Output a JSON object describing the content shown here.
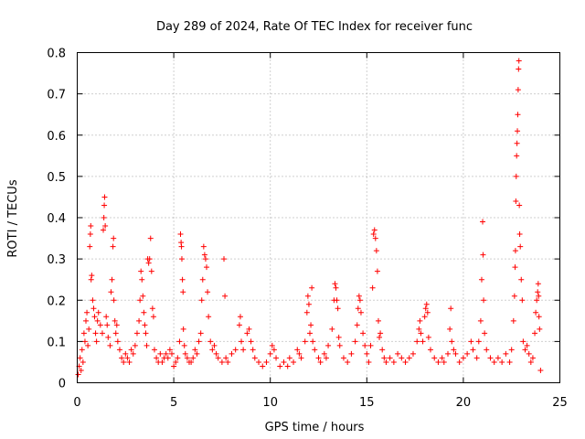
{
  "chart_data": {
    "type": "scatter",
    "title": "Day 289 of 2024, Rate Of TEC Index for receiver func",
    "xlabel": "GPS time / hours",
    "ylabel": "ROTI / TECUs",
    "xlim": [
      0,
      25
    ],
    "ylim": [
      0,
      0.8
    ],
    "x_ticks": [
      "0",
      "5",
      "10",
      "15",
      "20",
      "25"
    ],
    "y_ticks": [
      "0",
      "0.1",
      "0.2",
      "0.3",
      "0.4",
      "0.5",
      "0.6",
      "0.7",
      "0.8"
    ],
    "grid": true,
    "marker": "+",
    "color": "#ff0000",
    "series": [
      {
        "points": [
          [
            0.05,
            0.02
          ],
          [
            0.1,
            0.04
          ],
          [
            0.15,
            0.06
          ],
          [
            0.2,
            0.03
          ],
          [
            0.25,
            0.08
          ],
          [
            0.3,
            0.05
          ],
          [
            0.35,
            0.12
          ],
          [
            0.4,
            0.1
          ],
          [
            0.45,
            0.15
          ],
          [
            0.5,
            0.17
          ],
          [
            0.55,
            0.09
          ],
          [
            0.6,
            0.13
          ],
          [
            0.65,
            0.33
          ],
          [
            0.68,
            0.36
          ],
          [
            0.7,
            0.38
          ],
          [
            0.72,
            0.25
          ],
          [
            0.75,
            0.26
          ],
          [
            0.8,
            0.2
          ],
          [
            0.85,
            0.18
          ],
          [
            0.9,
            0.16
          ],
          [
            0.95,
            0.12
          ],
          [
            1.0,
            0.1
          ],
          [
            1.05,
            0.15
          ],
          [
            1.1,
            0.17
          ],
          [
            1.2,
            0.14
          ],
          [
            1.3,
            0.12
          ],
          [
            1.35,
            0.37
          ],
          [
            1.38,
            0.4
          ],
          [
            1.4,
            0.43
          ],
          [
            1.42,
            0.45
          ],
          [
            1.45,
            0.38
          ],
          [
            1.5,
            0.16
          ],
          [
            1.55,
            0.14
          ],
          [
            1.6,
            0.11
          ],
          [
            1.7,
            0.09
          ],
          [
            1.75,
            0.22
          ],
          [
            1.8,
            0.25
          ],
          [
            1.85,
            0.33
          ],
          [
            1.88,
            0.35
          ],
          [
            1.9,
            0.2
          ],
          [
            1.95,
            0.15
          ],
          [
            2.0,
            0.12
          ],
          [
            2.05,
            0.14
          ],
          [
            2.1,
            0.1
          ],
          [
            2.2,
            0.08
          ],
          [
            2.3,
            0.06
          ],
          [
            2.4,
            0.05
          ],
          [
            2.5,
            0.07
          ],
          [
            2.6,
            0.06
          ],
          [
            2.7,
            0.05
          ],
          [
            2.8,
            0.08
          ],
          [
            2.9,
            0.07
          ],
          [
            3.0,
            0.09
          ],
          [
            3.1,
            0.12
          ],
          [
            3.2,
            0.15
          ],
          [
            3.25,
            0.2
          ],
          [
            3.3,
            0.27
          ],
          [
            3.35,
            0.25
          ],
          [
            3.4,
            0.21
          ],
          [
            3.45,
            0.17
          ],
          [
            3.5,
            0.14
          ],
          [
            3.55,
            0.12
          ],
          [
            3.6,
            0.09
          ],
          [
            3.65,
            0.3
          ],
          [
            3.7,
            0.29
          ],
          [
            3.75,
            0.3
          ],
          [
            3.8,
            0.35
          ],
          [
            3.85,
            0.27
          ],
          [
            3.9,
            0.18
          ],
          [
            3.95,
            0.16
          ],
          [
            4.0,
            0.08
          ],
          [
            4.1,
            0.06
          ],
          [
            4.2,
            0.05
          ],
          [
            4.3,
            0.07
          ],
          [
            4.4,
            0.05
          ],
          [
            4.5,
            0.06
          ],
          [
            4.6,
            0.07
          ],
          [
            4.7,
            0.06
          ],
          [
            4.8,
            0.08
          ],
          [
            4.9,
            0.07
          ],
          [
            5.0,
            0.04
          ],
          [
            5.1,
            0.05
          ],
          [
            5.2,
            0.06
          ],
          [
            5.3,
            0.1
          ],
          [
            5.35,
            0.36
          ],
          [
            5.38,
            0.34
          ],
          [
            5.4,
            0.33
          ],
          [
            5.42,
            0.3
          ],
          [
            5.45,
            0.25
          ],
          [
            5.48,
            0.22
          ],
          [
            5.5,
            0.13
          ],
          [
            5.55,
            0.09
          ],
          [
            5.6,
            0.07
          ],
          [
            5.7,
            0.06
          ],
          [
            5.8,
            0.05
          ],
          [
            5.9,
            0.05
          ],
          [
            6.0,
            0.06
          ],
          [
            6.1,
            0.08
          ],
          [
            6.2,
            0.07
          ],
          [
            6.3,
            0.1
          ],
          [
            6.4,
            0.12
          ],
          [
            6.45,
            0.2
          ],
          [
            6.5,
            0.25
          ],
          [
            6.55,
            0.33
          ],
          [
            6.6,
            0.31
          ],
          [
            6.65,
            0.3
          ],
          [
            6.7,
            0.28
          ],
          [
            6.75,
            0.22
          ],
          [
            6.8,
            0.16
          ],
          [
            6.9,
            0.1
          ],
          [
            7.0,
            0.08
          ],
          [
            7.1,
            0.09
          ],
          [
            7.2,
            0.07
          ],
          [
            7.3,
            0.06
          ],
          [
            7.5,
            0.05
          ],
          [
            7.6,
            0.3
          ],
          [
            7.65,
            0.21
          ],
          [
            7.7,
            0.06
          ],
          [
            7.8,
            0.05
          ],
          [
            8.0,
            0.07
          ],
          [
            8.2,
            0.08
          ],
          [
            8.4,
            0.14
          ],
          [
            8.45,
            0.16
          ],
          [
            8.5,
            0.1
          ],
          [
            8.6,
            0.08
          ],
          [
            8.8,
            0.12
          ],
          [
            8.9,
            0.13
          ],
          [
            9.0,
            0.1
          ],
          [
            9.1,
            0.08
          ],
          [
            9.2,
            0.06
          ],
          [
            9.4,
            0.05
          ],
          [
            9.6,
            0.04
          ],
          [
            9.8,
            0.05
          ],
          [
            10.0,
            0.07
          ],
          [
            10.1,
            0.09
          ],
          [
            10.2,
            0.08
          ],
          [
            10.3,
            0.06
          ],
          [
            10.5,
            0.04
          ],
          [
            10.7,
            0.05
          ],
          [
            10.9,
            0.04
          ],
          [
            11.0,
            0.06
          ],
          [
            11.2,
            0.05
          ],
          [
            11.4,
            0.08
          ],
          [
            11.5,
            0.07
          ],
          [
            11.6,
            0.06
          ],
          [
            11.8,
            0.1
          ],
          [
            11.9,
            0.17
          ],
          [
            11.95,
            0.21
          ],
          [
            12.0,
            0.19
          ],
          [
            12.05,
            0.12
          ],
          [
            12.1,
            0.14
          ],
          [
            12.15,
            0.23
          ],
          [
            12.2,
            0.1
          ],
          [
            12.3,
            0.08
          ],
          [
            12.5,
            0.06
          ],
          [
            12.6,
            0.05
          ],
          [
            12.8,
            0.07
          ],
          [
            12.9,
            0.06
          ],
          [
            13.0,
            0.09
          ],
          [
            13.2,
            0.13
          ],
          [
            13.3,
            0.2
          ],
          [
            13.35,
            0.24
          ],
          [
            13.4,
            0.23
          ],
          [
            13.45,
            0.2
          ],
          [
            13.5,
            0.18
          ],
          [
            13.55,
            0.11
          ],
          [
            13.6,
            0.09
          ],
          [
            13.8,
            0.06
          ],
          [
            14.0,
            0.05
          ],
          [
            14.2,
            0.07
          ],
          [
            14.4,
            0.1
          ],
          [
            14.5,
            0.14
          ],
          [
            14.55,
            0.18
          ],
          [
            14.6,
            0.21
          ],
          [
            14.65,
            0.2
          ],
          [
            14.7,
            0.17
          ],
          [
            14.8,
            0.12
          ],
          [
            14.9,
            0.09
          ],
          [
            15.0,
            0.07
          ],
          [
            15.1,
            0.05
          ],
          [
            15.2,
            0.09
          ],
          [
            15.3,
            0.23
          ],
          [
            15.35,
            0.36
          ],
          [
            15.4,
            0.37
          ],
          [
            15.45,
            0.35
          ],
          [
            15.5,
            0.32
          ],
          [
            15.55,
            0.27
          ],
          [
            15.6,
            0.15
          ],
          [
            15.65,
            0.11
          ],
          [
            15.7,
            0.12
          ],
          [
            15.8,
            0.08
          ],
          [
            15.9,
            0.06
          ],
          [
            16.0,
            0.05
          ],
          [
            16.2,
            0.06
          ],
          [
            16.4,
            0.05
          ],
          [
            16.6,
            0.07
          ],
          [
            16.8,
            0.06
          ],
          [
            17.0,
            0.05
          ],
          [
            17.2,
            0.06
          ],
          [
            17.4,
            0.07
          ],
          [
            17.6,
            0.1
          ],
          [
            17.7,
            0.13
          ],
          [
            17.75,
            0.15
          ],
          [
            17.8,
            0.12
          ],
          [
            17.9,
            0.1
          ],
          [
            18.0,
            0.16
          ],
          [
            18.05,
            0.18
          ],
          [
            18.1,
            0.19
          ],
          [
            18.15,
            0.17
          ],
          [
            18.2,
            0.11
          ],
          [
            18.3,
            0.08
          ],
          [
            18.5,
            0.06
          ],
          [
            18.7,
            0.05
          ],
          [
            18.9,
            0.06
          ],
          [
            19.0,
            0.05
          ],
          [
            19.2,
            0.07
          ],
          [
            19.3,
            0.13
          ],
          [
            19.35,
            0.18
          ],
          [
            19.4,
            0.1
          ],
          [
            19.5,
            0.08
          ],
          [
            19.6,
            0.07
          ],
          [
            19.8,
            0.05
          ],
          [
            20.0,
            0.06
          ],
          [
            20.2,
            0.07
          ],
          [
            20.4,
            0.1
          ],
          [
            20.5,
            0.08
          ],
          [
            20.7,
            0.06
          ],
          [
            20.8,
            0.1
          ],
          [
            20.9,
            0.15
          ],
          [
            20.95,
            0.25
          ],
          [
            21.0,
            0.39
          ],
          [
            21.02,
            0.31
          ],
          [
            21.05,
            0.2
          ],
          [
            21.1,
            0.12
          ],
          [
            21.2,
            0.08
          ],
          [
            21.4,
            0.06
          ],
          [
            21.6,
            0.05
          ],
          [
            21.8,
            0.06
          ],
          [
            22.0,
            0.05
          ],
          [
            22.2,
            0.07
          ],
          [
            22.4,
            0.05
          ],
          [
            22.5,
            0.08
          ],
          [
            22.6,
            0.15
          ],
          [
            22.65,
            0.21
          ],
          [
            22.68,
            0.28
          ],
          [
            22.7,
            0.32
          ],
          [
            22.72,
            0.44
          ],
          [
            22.74,
            0.5
          ],
          [
            22.76,
            0.55
          ],
          [
            22.78,
            0.58
          ],
          [
            22.8,
            0.61
          ],
          [
            22.82,
            0.65
          ],
          [
            22.84,
            0.71
          ],
          [
            22.86,
            0.76
          ],
          [
            22.88,
            0.78
          ],
          [
            22.9,
            0.43
          ],
          [
            22.92,
            0.36
          ],
          [
            22.95,
            0.33
          ],
          [
            23.0,
            0.25
          ],
          [
            23.05,
            0.2
          ],
          [
            23.1,
            0.1
          ],
          [
            23.2,
            0.08
          ],
          [
            23.3,
            0.09
          ],
          [
            23.4,
            0.07
          ],
          [
            23.5,
            0.05
          ],
          [
            23.6,
            0.06
          ],
          [
            23.7,
            0.12
          ],
          [
            23.75,
            0.17
          ],
          [
            23.8,
            0.2
          ],
          [
            23.85,
            0.22
          ],
          [
            23.88,
            0.24
          ],
          [
            23.9,
            0.21
          ],
          [
            23.92,
            0.16
          ],
          [
            23.95,
            0.13
          ],
          [
            24.0,
            0.03
          ]
        ]
      }
    ]
  }
}
